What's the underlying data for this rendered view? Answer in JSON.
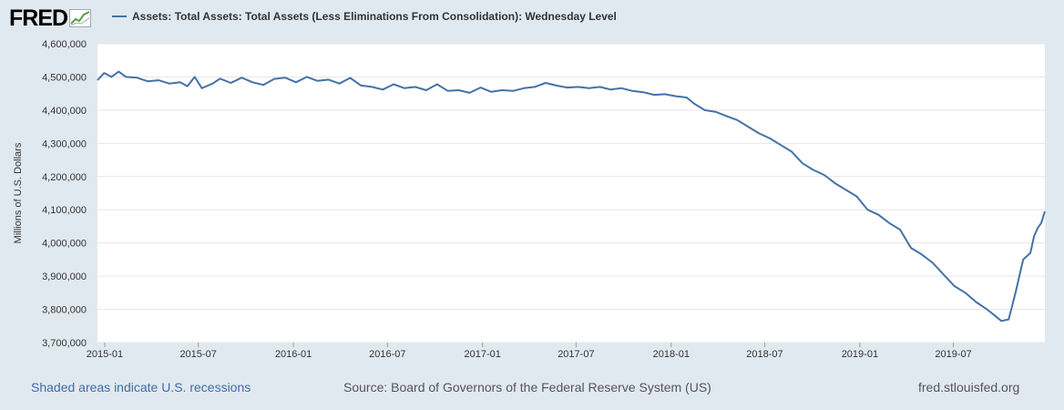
{
  "header": {
    "logo_text": "FRED",
    "logo_icon": "chart-line-icon"
  },
  "chart_data": {
    "type": "line",
    "title": "",
    "xlabel": "",
    "ylabel": "Millions of U.S. Dollars",
    "ylim": [
      3700000,
      4600000
    ],
    "xlim": [
      "2014-12-18",
      "2019-12-25"
    ],
    "y_ticks": [
      3700000,
      3800000,
      3900000,
      4000000,
      4100000,
      4200000,
      4300000,
      4400000,
      4500000,
      4600000
    ],
    "y_tick_labels": [
      "3,700,000",
      "3,800,000",
      "3,900,000",
      "4,000,000",
      "4,100,000",
      "4,200,000",
      "4,300,000",
      "4,400,000",
      "4,500,000",
      "4,600,000"
    ],
    "x_ticks": [
      "2015-01-01",
      "2015-07-01",
      "2016-01-01",
      "2016-07-01",
      "2017-01-01",
      "2017-07-01",
      "2018-01-01",
      "2018-07-01",
      "2019-01-01",
      "2019-07-01"
    ],
    "x_tick_labels": [
      "2015-01",
      "2015-07",
      "2016-01",
      "2016-07",
      "2017-01",
      "2017-07",
      "2018-01",
      "2018-07",
      "2019-01",
      "2019-07"
    ],
    "grid": true,
    "legend_position": "top-left",
    "series": [
      {
        "name": "Assets: Total Assets: Total Assets (Less Eliminations From Consolidation): Wednesday Level",
        "color": "#4572a7",
        "points": [
          [
            "2014-12-18",
            4490000
          ],
          [
            "2014-12-31",
            4512000
          ],
          [
            "2015-01-14",
            4500000
          ],
          [
            "2015-01-28",
            4516000
          ],
          [
            "2015-02-11",
            4500000
          ],
          [
            "2015-03-04",
            4498000
          ],
          [
            "2015-03-25",
            4487000
          ],
          [
            "2015-04-15",
            4490000
          ],
          [
            "2015-05-06",
            4480000
          ],
          [
            "2015-05-27",
            4484000
          ],
          [
            "2015-06-10",
            4472000
          ],
          [
            "2015-06-24",
            4500000
          ],
          [
            "2015-07-08",
            4466000
          ],
          [
            "2015-07-29",
            4480000
          ],
          [
            "2015-08-12",
            4495000
          ],
          [
            "2015-09-02",
            4482000
          ],
          [
            "2015-09-23",
            4498000
          ],
          [
            "2015-10-14",
            4484000
          ],
          [
            "2015-11-04",
            4476000
          ],
          [
            "2015-11-25",
            4494000
          ],
          [
            "2015-12-16",
            4498000
          ],
          [
            "2016-01-06",
            4484000
          ],
          [
            "2016-01-27",
            4500000
          ],
          [
            "2016-02-17",
            4488000
          ],
          [
            "2016-03-09",
            4492000
          ],
          [
            "2016-03-30",
            4480000
          ],
          [
            "2016-04-20",
            4497000
          ],
          [
            "2016-05-11",
            4474000
          ],
          [
            "2016-06-01",
            4470000
          ],
          [
            "2016-06-22",
            4462000
          ],
          [
            "2016-07-13",
            4478000
          ],
          [
            "2016-08-03",
            4466000
          ],
          [
            "2016-08-24",
            4470000
          ],
          [
            "2016-09-14",
            4460000
          ],
          [
            "2016-10-05",
            4478000
          ],
          [
            "2016-10-26",
            4458000
          ],
          [
            "2016-11-16",
            4460000
          ],
          [
            "2016-12-07",
            4452000
          ],
          [
            "2016-12-28",
            4468000
          ],
          [
            "2017-01-18",
            4455000
          ],
          [
            "2017-02-08",
            4460000
          ],
          [
            "2017-03-01",
            4458000
          ],
          [
            "2017-03-22",
            4466000
          ],
          [
            "2017-04-12",
            4470000
          ],
          [
            "2017-05-03",
            4482000
          ],
          [
            "2017-05-24",
            4474000
          ],
          [
            "2017-06-14",
            4468000
          ],
          [
            "2017-07-05",
            4470000
          ],
          [
            "2017-07-26",
            4466000
          ],
          [
            "2017-08-16",
            4470000
          ],
          [
            "2017-09-06",
            4462000
          ],
          [
            "2017-09-27",
            4466000
          ],
          [
            "2017-10-18",
            4458000
          ],
          [
            "2017-11-08",
            4454000
          ],
          [
            "2017-11-29",
            4446000
          ],
          [
            "2017-12-20",
            4448000
          ],
          [
            "2018-01-10",
            4442000
          ],
          [
            "2018-01-31",
            4438000
          ],
          [
            "2018-02-14",
            4420000
          ],
          [
            "2018-03-07",
            4400000
          ],
          [
            "2018-03-28",
            4395000
          ],
          [
            "2018-04-18",
            4382000
          ],
          [
            "2018-05-09",
            4370000
          ],
          [
            "2018-05-30",
            4350000
          ],
          [
            "2018-06-20",
            4330000
          ],
          [
            "2018-07-11",
            4315000
          ],
          [
            "2018-08-01",
            4295000
          ],
          [
            "2018-08-22",
            4275000
          ],
          [
            "2018-09-12",
            4240000
          ],
          [
            "2018-10-03",
            4220000
          ],
          [
            "2018-10-24",
            4205000
          ],
          [
            "2018-11-14",
            4180000
          ],
          [
            "2018-12-05",
            4160000
          ],
          [
            "2018-12-26",
            4140000
          ],
          [
            "2019-01-16",
            4100000
          ],
          [
            "2019-02-06",
            4085000
          ],
          [
            "2019-02-27",
            4060000
          ],
          [
            "2019-03-20",
            4040000
          ],
          [
            "2019-04-10",
            3985000
          ],
          [
            "2019-05-01",
            3965000
          ],
          [
            "2019-05-22",
            3940000
          ],
          [
            "2019-06-12",
            3905000
          ],
          [
            "2019-07-03",
            3870000
          ],
          [
            "2019-07-24",
            3850000
          ],
          [
            "2019-08-14",
            3822000
          ],
          [
            "2019-09-04",
            3800000
          ],
          [
            "2019-09-18",
            3783000
          ],
          [
            "2019-10-02",
            3765000
          ],
          [
            "2019-10-16",
            3770000
          ],
          [
            "2019-10-30",
            3855000
          ],
          [
            "2019-11-13",
            3950000
          ],
          [
            "2019-11-27",
            3970000
          ],
          [
            "2019-12-04",
            4020000
          ],
          [
            "2019-12-11",
            4045000
          ],
          [
            "2019-12-18",
            4060000
          ],
          [
            "2019-12-25",
            4095000
          ]
        ]
      }
    ]
  },
  "footer": {
    "recessions_note": "Shaded areas indicate U.S. recessions",
    "source": "Source: Board of Governors of the Federal Reserve System (US)",
    "site": "fred.stlouisfed.org"
  }
}
